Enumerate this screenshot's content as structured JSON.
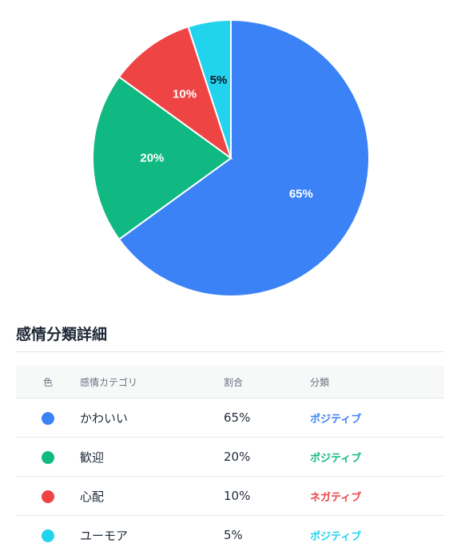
{
  "chart_data": {
    "type": "pie",
    "title": "",
    "slices": [
      {
        "label": "かわいい",
        "value": 65,
        "display": "65%",
        "color": "#3b82f6",
        "label_color": "#ffffff"
      },
      {
        "label": "歓迎",
        "value": 20,
        "display": "20%",
        "color": "#10b981",
        "label_color": "#ffffff"
      },
      {
        "label": "心配",
        "value": 10,
        "display": "10%",
        "color": "#ef4444",
        "label_color": "#ffffff"
      },
      {
        "label": "ユーモア",
        "value": 5,
        "display": "5%",
        "color": "#22d3ee",
        "label_color": "#111827"
      }
    ]
  },
  "details": {
    "title": "感情分類詳細",
    "headers": {
      "color": "色",
      "category": "感情カテゴリ",
      "ratio": "割合",
      "classification": "分類"
    },
    "rows": [
      {
        "color": "#3b82f6",
        "category": "かわいい",
        "ratio": "65%",
        "classification": "ポジティブ"
      },
      {
        "color": "#10b981",
        "category": "歓迎",
        "ratio": "20%",
        "classification": "ポジティブ"
      },
      {
        "color": "#ef4444",
        "category": "心配",
        "ratio": "10%",
        "classification": "ネガティブ"
      },
      {
        "color": "#22d3ee",
        "category": "ユーモア",
        "ratio": "5%",
        "classification": "ポジティブ"
      }
    ]
  }
}
